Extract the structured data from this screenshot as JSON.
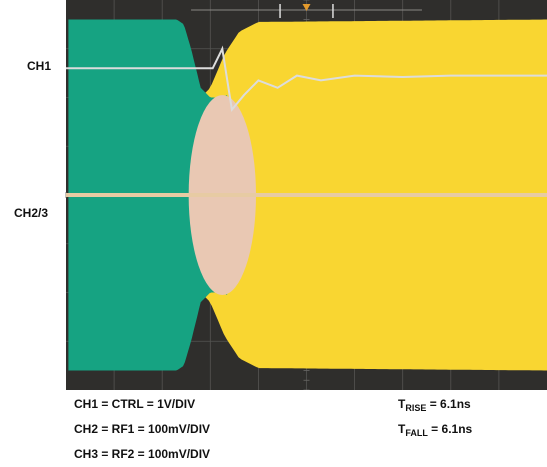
{
  "chart_data": {
    "type": "line",
    "channel_labels": {
      "ch1": "CH1",
      "ch23": "CH2/3"
    },
    "settings": [
      "CH1 = CTRL = 1V/DIV",
      "CH2 = RF1 = 100mV/DIV",
      "CH3 = RF2 = 100mV/DIV"
    ],
    "measurements": [
      {
        "symbol": "T",
        "subscript": "RISE",
        "text": " = 6.1ns"
      },
      {
        "symbol": "T",
        "subscript": "FALL",
        "text": " = 6.1ns"
      }
    ],
    "grid": true,
    "divisions": {
      "x": 10,
      "y": 8
    },
    "series": [
      {
        "name": "CH1",
        "color": "#dcdcdc",
        "points": [
          [
            0,
            6.6
          ],
          [
            3.05,
            6.6
          ],
          [
            3.25,
            7.0
          ],
          [
            3.45,
            5.75
          ],
          [
            3.7,
            6.05
          ],
          [
            4.0,
            6.35
          ],
          [
            4.4,
            6.2
          ],
          [
            4.8,
            6.45
          ],
          [
            5.3,
            6.35
          ],
          [
            6.0,
            6.45
          ],
          [
            7.0,
            6.42
          ],
          [
            8.0,
            6.45
          ],
          [
            10.0,
            6.45
          ]
        ]
      },
      {
        "name": "CH2",
        "color": "#16a382",
        "envelope": [
          [
            0,
            3.6
          ],
          [
            2.3,
            3.6
          ],
          [
            2.45,
            3.5
          ],
          [
            2.6,
            3.0
          ],
          [
            2.8,
            2.2
          ],
          [
            3.0,
            2.0
          ],
          [
            3.2,
            2.0
          ],
          [
            3.35,
            2.05
          ]
        ]
      },
      {
        "name": "CH3",
        "color": "#f9d631",
        "envelope": [
          [
            2.6,
            1.8
          ],
          [
            3.0,
            2.2
          ],
          [
            3.3,
            2.9
          ],
          [
            3.6,
            3.35
          ],
          [
            4.0,
            3.55
          ],
          [
            10.0,
            3.6
          ]
        ]
      }
    ],
    "colors": {
      "screen": "#2f2e2c",
      "grid": "#555452",
      "overlap": "#e9c8b3",
      "baseline": "#e7cba3"
    }
  }
}
